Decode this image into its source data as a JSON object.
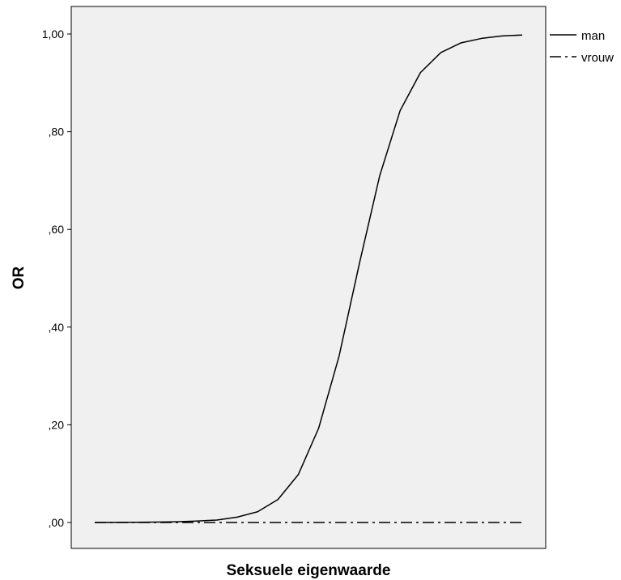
{
  "chart_data": {
    "type": "line",
    "title": "",
    "xlabel": "Seksuele eigenwaarde",
    "ylabel": "OR",
    "ylim": [
      0,
      1
    ],
    "yticks": [
      {
        "value": 0.0,
        "label": ",00"
      },
      {
        "value": 0.2,
        "label": ",20"
      },
      {
        "value": 0.4,
        "label": ",40"
      },
      {
        "value": 0.6,
        "label": ",60"
      },
      {
        "value": 0.8,
        "label": ",80"
      },
      {
        "value": 1.0,
        "label": "1,00"
      }
    ],
    "xlim": [
      0,
      21
    ],
    "grid": false,
    "legend": "right",
    "background_color": "#f0f0f0",
    "line_color": "#000000",
    "x": [
      0,
      1,
      2,
      3,
      4,
      5,
      6,
      7,
      8,
      9,
      10,
      11,
      12,
      13,
      14,
      15,
      16,
      17,
      18,
      19,
      20,
      21
    ],
    "series": [
      {
        "name": "man",
        "style": "solid",
        "values": [
          0.0,
          0.0002,
          0.0005,
          0.0008,
          0.0015,
          0.003,
          0.005,
          0.011,
          0.022,
          0.047,
          0.098,
          0.193,
          0.34,
          0.53,
          0.71,
          0.843,
          0.921,
          0.962,
          0.982,
          0.991,
          0.996,
          0.998
        ]
      },
      {
        "name": "vrouw",
        "style": "dash-dot",
        "values": [
          0.0,
          0.0,
          0.0,
          0.0,
          0.0,
          0.0,
          0.0,
          0.0,
          0.0,
          0.0,
          0.0,
          0.0,
          0.0,
          0.0,
          0.0,
          0.0,
          0.0,
          0.0,
          0.0,
          0.0,
          0.0,
          0.0
        ]
      }
    ]
  }
}
